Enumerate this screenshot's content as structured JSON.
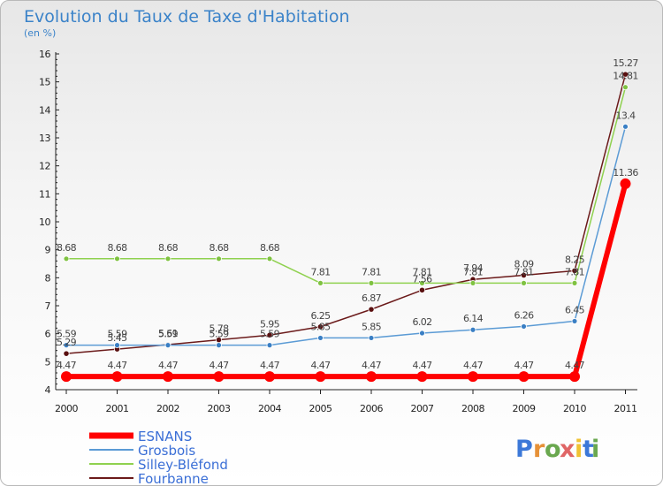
{
  "chart_data": {
    "type": "line",
    "title": "Evolution du Taux de Taxe d'Habitation",
    "subtitle": "(en %)",
    "xlabel": "",
    "ylabel": "",
    "categories": [
      "2000",
      "2001",
      "2002",
      "2003",
      "2004",
      "2005",
      "2006",
      "2007",
      "2008",
      "2009",
      "2010",
      "2011"
    ],
    "y_ticks": [
      4,
      5,
      6,
      7,
      8,
      9,
      10,
      11,
      12,
      13,
      14,
      15,
      16
    ],
    "ylim": [
      4,
      16
    ],
    "grid": false,
    "legend_position": "bottom-left",
    "series": [
      {
        "name": "Fourbanne",
        "color": "#6b1a1a",
        "values": [
          5.29,
          5.45,
          5.61,
          5.78,
          5.95,
          6.25,
          6.87,
          7.56,
          7.94,
          8.09,
          8.25,
          15.27
        ]
      },
      {
        "name": "Silley-Bléfond",
        "color": "#8fd14f",
        "values": [
          8.68,
          8.68,
          8.68,
          8.68,
          8.68,
          7.81,
          7.81,
          7.81,
          7.81,
          7.81,
          7.81,
          14.81
        ]
      },
      {
        "name": "Grosbois",
        "color": "#5b9bd5",
        "values": [
          5.59,
          5.59,
          5.59,
          5.59,
          5.59,
          5.85,
          5.85,
          6.02,
          6.14,
          6.26,
          6.45,
          13.4
        ]
      },
      {
        "name": "ESNANS",
        "color": "#ff0000",
        "values": [
          4.47,
          4.47,
          4.47,
          4.47,
          4.47,
          4.47,
          4.47,
          4.47,
          4.47,
          4.47,
          4.47,
          11.36
        ]
      }
    ],
    "legend_order": [
      "ESNANS",
      "Grosbois",
      "Silley-Bléfond",
      "Fourbanne"
    ]
  },
  "brand": {
    "name": "Proxiti",
    "letters": [
      "P",
      "r",
      "o",
      "x",
      "i",
      "t",
      "i"
    ],
    "colors": [
      "#3c78d8",
      "#e69138",
      "#6aa84f",
      "#e06666",
      "#f1c232",
      "#3c78d8",
      "#6aa84f"
    ]
  }
}
